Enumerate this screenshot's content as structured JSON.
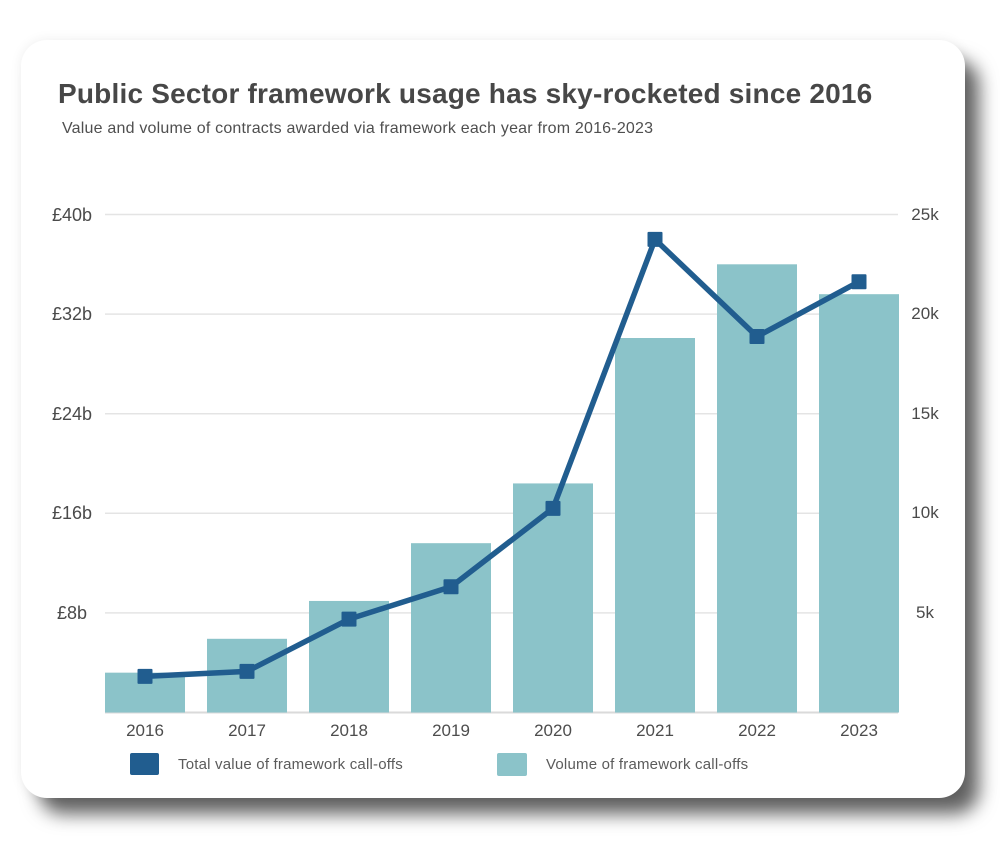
{
  "card": {
    "title": "Public Sector framework usage has sky-rocketed since 2016",
    "subtitle": "Value and volume of contracts awarded via framework each year from 2016-2023"
  },
  "chart_data": {
    "type": "combo",
    "title": "Public Sector framework usage has sky-rocketed since 2016",
    "subtitle": "Value and volume of contracts awarded via framework each year from 2016-2023",
    "categories": [
      "2016",
      "2017",
      "2018",
      "2019",
      "2020",
      "2021",
      "2022",
      "2023"
    ],
    "series": [
      {
        "name": "Total value of framework call-offs",
        "type": "line",
        "marker": "square",
        "axis": "left",
        "unit": "£ billions",
        "color": "#215D8F",
        "values": [
          2.9,
          3.3,
          7.5,
          10.1,
          16.4,
          38,
          30.2,
          34.6
        ]
      },
      {
        "name": "Volume of framework call-offs",
        "type": "bar",
        "axis": "right",
        "unit": "thousands of call-offs",
        "color": "#8BC3C9",
        "values": [
          2.0,
          3.7,
          5.6,
          8.5,
          11.5,
          18.8,
          22.5,
          21.0
        ]
      }
    ],
    "left_axis": {
      "ticks": [
        "£8b",
        "£16b",
        "£24b",
        "£32b",
        "£40b"
      ],
      "tick_values": [
        8,
        16,
        24,
        32,
        40
      ],
      "range": [
        0,
        40
      ]
    },
    "right_axis": {
      "ticks": [
        "5k",
        "10k",
        "15k",
        "20k",
        "25k"
      ],
      "tick_values": [
        5,
        10,
        15,
        20,
        25
      ],
      "range": [
        0,
        25
      ]
    },
    "grid": "horizontal gridlines on",
    "legend_position": "bottom"
  },
  "colors": {
    "line_series": "#215D8F",
    "bar_series": "#8BC3C9",
    "gridline": "#E4E4E4",
    "axis_line": "#DADADA",
    "title_text": "#474747",
    "subtitle_text": "#4F4F4F",
    "tick_text": "#4A4A4A",
    "legend_text": "#5B5B5B"
  }
}
